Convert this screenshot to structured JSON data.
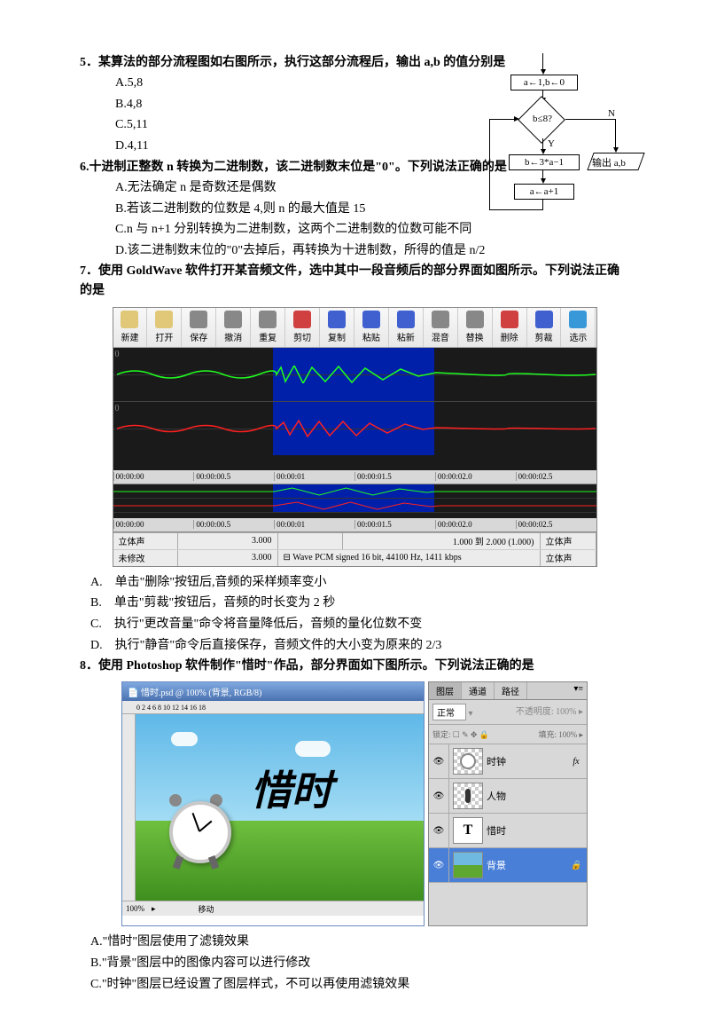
{
  "q5": {
    "header": "5．某算法的部分流程图如右图所示，执行这部分流程后，输出 a,b 的值分别是",
    "optA": "A.5,8",
    "optB": "B.4,8",
    "optC": "C.5,11",
    "optD": "D.4,11"
  },
  "flowchart": {
    "init": "a←1,b←0",
    "cond": "b≤8?",
    "yes": "Y",
    "no": "N",
    "step1": "b←3*a−1",
    "output": "输出 a,b",
    "step2": "a←a+1",
    "colors": {
      "line": "#000000",
      "bg": "#ffffff"
    }
  },
  "q6": {
    "header": "6.十进制正整数 n 转换为二进制数，该二进制数末位是\"0\"。下列说法正确的是",
    "optA": "A.无法确定 n 是奇数还是偶数",
    "optB": "B.若该二进制数的位数是 4,则 n 的最大值是 15",
    "optC": "C.n 与 n+1 分别转换为二进制数，这两个二进制数的位数可能不同",
    "optD": "D.该二进制数末位的\"0\"去掉后，再转换为十进制数，所得的值是 n/2"
  },
  "q7": {
    "header": "7．使用 GoldWave 软件打开某音频文件，选中其中一段音频后的部分界面如图所示。下列说法正确的是",
    "optA": "A.　单击\"删除\"按钮后,音频的采样频率变小",
    "optB": "B.　单击\"剪裁\"按钮后，音频的时长变为 2 秒",
    "optC": "C.　执行\"更改音量\"命令将音量降低后，音频的量化位数不变",
    "optD": "D.　执行\"静音\"命令后直接保存，音频文件的大小变为原来的 2/3"
  },
  "goldwave": {
    "buttons": [
      "新建",
      "打开",
      "保存",
      "撤消",
      "重复",
      "剪切",
      "复制",
      "粘贴",
      "粘新",
      "混音",
      "替换",
      "删除",
      "剪裁",
      "选示"
    ],
    "btn_colors": [
      "#e0c878",
      "#e0c878",
      "#888888",
      "#888888",
      "#888888",
      "#d04040",
      "#4060d0",
      "#4060d0",
      "#4060d0",
      "#888888",
      "#888888",
      "#d04040",
      "#4060d0",
      "#3898d8"
    ],
    "ruler": [
      "00:00:00",
      "00:00:00.5",
      "00:00:01",
      "00:00:01.5",
      "00:00:02.0",
      "00:00:02.5"
    ],
    "status": {
      "stereo": "立体声",
      "len": "3.000",
      "blank": "",
      "range": "1.000 到 2.000 (1.000)",
      "fmt": "立体声",
      "mod": "未修改",
      "len2": "3.000",
      "info": "⊟ Wave PCM signed 16 bit, 44100 Hz, 1411 kbps",
      "fmt2": "立体声"
    },
    "sel_start": 180,
    "sel_width": 182,
    "wave_color_top": "#20ff20",
    "wave_color_bot": "#ff2020",
    "bg": "#1a1a1a",
    "sel_bg": "#0020aa"
  },
  "q8": {
    "header": "8．使用 Photoshop 软件制作\"惜时\"作品，部分界面如下图所示。下列说法正确的是",
    "optA": "A.\"惜时\"图层使用了滤镜效果",
    "optB": "B.\"背景\"图层中的图像内容可以进行修改",
    "optC": "C.\"时钟\"图层已经设置了图层样式，不可以再使用滤镜效果"
  },
  "photoshop": {
    "title": "📄 惜时.psd @ 100% (背景, RGB/8)",
    "ruler_marks": "0   2   4   6   8   10   12   14   16   18",
    "tabs": [
      "图层",
      "通道",
      "路径"
    ],
    "mode": "正常",
    "opacity": "不透明度",
    "opacity_val": "100%",
    "lock": "锁定: ☐ ✎ ✥ 🔒",
    "fill": "填充:",
    "fill_val": "100%",
    "layers": [
      {
        "name": "时钟",
        "fx": "fx",
        "eye": true,
        "thumb": "clock"
      },
      {
        "name": "人物",
        "fx": "",
        "eye": true,
        "thumb": "person"
      },
      {
        "name": "惜时",
        "fx": "",
        "eye": true,
        "thumb": "T"
      },
      {
        "name": "背景",
        "fx": "🔒",
        "eye": true,
        "thumb": "bg",
        "selected": true
      }
    ],
    "text": "惜时",
    "zoom": "100%",
    "tool": "移动",
    "colors": {
      "sky": "#5fb8e8",
      "grass": "#4fa828",
      "title_bar": "#5f85c0",
      "sel_layer": "#4a7fd8"
    }
  }
}
